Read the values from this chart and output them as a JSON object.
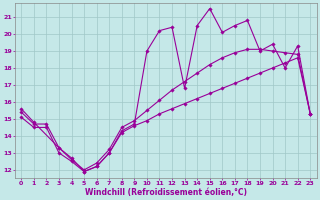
{
  "xlabel": "Windchill (Refroidissement éolien,°C)",
  "bg_color": "#c5e8e8",
  "grid_color": "#a0c8c8",
  "line_color": "#990099",
  "xlim": [
    -0.5,
    23.5
  ],
  "ylim": [
    11.5,
    21.8
  ],
  "yticks": [
    12,
    13,
    14,
    15,
    16,
    17,
    18,
    19,
    20,
    21
  ],
  "xticks": [
    0,
    1,
    2,
    3,
    4,
    5,
    6,
    7,
    8,
    9,
    10,
    11,
    12,
    13,
    14,
    15,
    16,
    17,
    18,
    19,
    20,
    21,
    22,
    23
  ],
  "line1_x": [
    0,
    1,
    3,
    4,
    5,
    6,
    7,
    8,
    9,
    10,
    11,
    12,
    13,
    14,
    15,
    16,
    17,
    18,
    19,
    20,
    21,
    22,
    23
  ],
  "line1_y": [
    15.6,
    14.8,
    13.3,
    12.7,
    11.9,
    12.2,
    13.0,
    14.3,
    14.7,
    19.0,
    20.2,
    20.4,
    16.8,
    20.5,
    21.5,
    20.1,
    20.5,
    20.8,
    19.0,
    19.4,
    18.0,
    19.3,
    15.3
  ],
  "line2_x": [
    0,
    1,
    2,
    3,
    4,
    5,
    6,
    7,
    8,
    9,
    10,
    11,
    12,
    13,
    14,
    15,
    16,
    17,
    18,
    19,
    20,
    21,
    22,
    23
  ],
  "line2_y": [
    15.4,
    14.7,
    14.7,
    13.3,
    12.6,
    12.0,
    12.4,
    13.2,
    14.5,
    14.9,
    15.5,
    16.1,
    16.7,
    17.2,
    17.7,
    18.2,
    18.6,
    18.9,
    19.1,
    19.1,
    19.0,
    18.9,
    18.8,
    15.3
  ],
  "line3_x": [
    0,
    1,
    2,
    3,
    4,
    5,
    6,
    7,
    8,
    9,
    10,
    11,
    12,
    13,
    14,
    15,
    16,
    17,
    18,
    19,
    20,
    21,
    22,
    23
  ],
  "line3_y": [
    15.1,
    14.5,
    14.5,
    13.0,
    12.5,
    11.9,
    12.2,
    13.0,
    14.2,
    14.6,
    14.9,
    15.3,
    15.6,
    15.9,
    16.2,
    16.5,
    16.8,
    17.1,
    17.4,
    17.7,
    18.0,
    18.3,
    18.6,
    15.3
  ]
}
